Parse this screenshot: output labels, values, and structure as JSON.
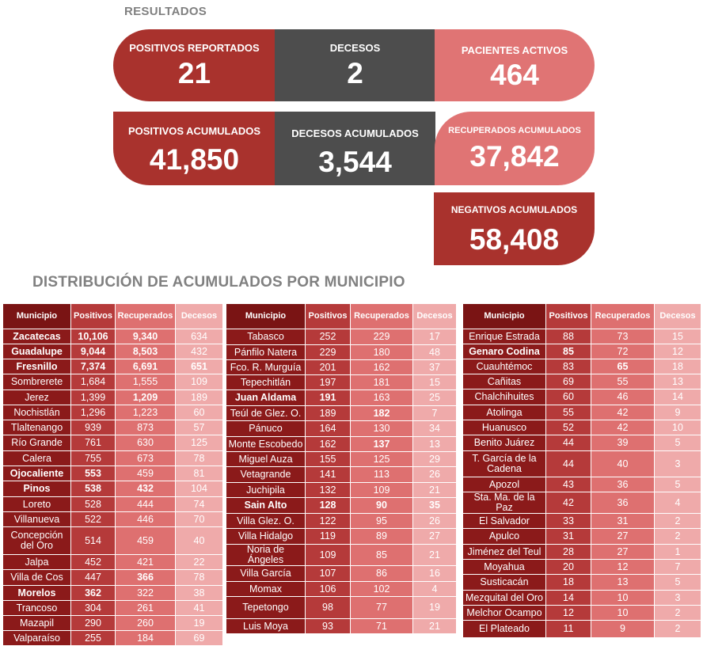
{
  "resultados_title": "RESULTADOS",
  "dist_title": "DISTRIBUCIÓN DE ACUMULADOS POR MUNICIPIO",
  "stats": {
    "positivos_reportados": {
      "label": "POSITIVOS REPORTADOS",
      "value": "21"
    },
    "decesos": {
      "label": "DECESOS",
      "value": "2"
    },
    "pacientes_activos": {
      "label": "PACIENTES ACTIVOS",
      "value": "464"
    },
    "positivos_acumulados": {
      "label": "POSITIVOS ACUMULADOS",
      "value": "41,850"
    },
    "decesos_acumulados": {
      "label": "DECESOS ACUMULADOS",
      "value": "3,544"
    },
    "recuperados_acumulados": {
      "label": "RECUPERADOS ACUMULADOS",
      "value": "37,842"
    },
    "negativos_acumulados": {
      "label": "NEGATIVOS ACUMULADOS",
      "value": "58,408"
    }
  },
  "table_headers": [
    "Municipio",
    "Positivos",
    "Recuperados",
    "Decesos"
  ],
  "tables": [
    [
      [
        "Zacatecas",
        "10,106",
        "9,340",
        "634"
      ],
      [
        "Guadalupe",
        "9,044",
        "8,503",
        "432"
      ],
      [
        "Fresnillo",
        "7,374",
        "6,691",
        "651"
      ],
      [
        "Sombrerete",
        "1,684",
        "1,555",
        "109"
      ],
      [
        "Jerez",
        "1,399",
        "1,209",
        "189"
      ],
      [
        "Nochistlán",
        "1,296",
        "1,223",
        "60"
      ],
      [
        "Tlaltenango",
        "939",
        "873",
        "57"
      ],
      [
        "Río Grande",
        "761",
        "630",
        "125"
      ],
      [
        "Calera",
        "755",
        "673",
        "78"
      ],
      [
        "Ojocaliente",
        "553",
        "459",
        "81"
      ],
      [
        "Pinos",
        "538",
        "432",
        "104"
      ],
      [
        "Loreto",
        "528",
        "444",
        "74"
      ],
      [
        "Villanueva",
        "522",
        "446",
        "70"
      ],
      [
        "Concepción del Oro",
        "514",
        "459",
        "40"
      ],
      [
        "Jalpa",
        "452",
        "421",
        "22"
      ],
      [
        "Villa de Cos",
        "447",
        "366",
        "78"
      ],
      [
        "Morelos",
        "362",
        "322",
        "38"
      ],
      [
        "Trancoso",
        "304",
        "261",
        "41"
      ],
      [
        "Mazapil",
        "290",
        "260",
        "19"
      ],
      [
        "Valparaíso",
        "255",
        "184",
        "69"
      ]
    ],
    [
      [
        "Tabasco",
        "252",
        "229",
        "17"
      ],
      [
        "Pánfilo Natera",
        "229",
        "180",
        "48"
      ],
      [
        "Fco. R. Murguía",
        "201",
        "162",
        "37"
      ],
      [
        "Tepechitlán",
        "197",
        "181",
        "15"
      ],
      [
        "Juan Aldama",
        "191",
        "163",
        "25"
      ],
      [
        "Teúl de Glez. O.",
        "189",
        "182",
        "7"
      ],
      [
        "Pánuco",
        "164",
        "130",
        "34"
      ],
      [
        "Monte Escobedo",
        "162",
        "137",
        "13"
      ],
      [
        "Miguel Auza",
        "155",
        "125",
        "29"
      ],
      [
        "Vetagrande",
        "141",
        "113",
        "26"
      ],
      [
        "Juchipila",
        "132",
        "109",
        "21"
      ],
      [
        "Sain Alto",
        "128",
        "90",
        "35"
      ],
      [
        "Villa Glez. O.",
        "122",
        "95",
        "26"
      ],
      [
        "Villa Hidalgo",
        "119",
        "89",
        "27"
      ],
      [
        "Noria de Ángeles",
        "109",
        "85",
        "21"
      ],
      [
        "Villa García",
        "107",
        "86",
        "16"
      ],
      [
        "Momax",
        "106",
        "102",
        "4"
      ],
      [
        "Tepetongo",
        "98",
        "77",
        "19"
      ],
      [
        "Luis Moya",
        "93",
        "71",
        "21"
      ]
    ],
    [
      [
        "Enrique Estrada",
        "88",
        "73",
        "15"
      ],
      [
        "Genaro Codina",
        "85",
        "72",
        "12"
      ],
      [
        "Cuauhtémoc",
        "83",
        "65",
        "18"
      ],
      [
        "Cañitas",
        "69",
        "55",
        "13"
      ],
      [
        "Chalchihuites",
        "60",
        "46",
        "14"
      ],
      [
        "Atolinga",
        "55",
        "42",
        "9"
      ],
      [
        "Huanusco",
        "52",
        "42",
        "10"
      ],
      [
        "Benito Juárez",
        "44",
        "39",
        "5"
      ],
      [
        "T. García de la Cadena",
        "44",
        "40",
        "3"
      ],
      [
        "Apozol",
        "43",
        "36",
        "5"
      ],
      [
        "Sta. Ma. de la Paz",
        "42",
        "36",
        "4"
      ],
      [
        "El Salvador",
        "33",
        "31",
        "2"
      ],
      [
        "Apulco",
        "31",
        "27",
        "2"
      ],
      [
        "Jiménez del Teul",
        "28",
        "27",
        "1"
      ],
      [
        "Moyahua",
        "20",
        "12",
        "7"
      ],
      [
        "Susticacán",
        "18",
        "13",
        "5"
      ],
      [
        "Mezquital del Oro",
        "14",
        "10",
        "3"
      ],
      [
        "Melchor Ocampo",
        "12",
        "10",
        "2"
      ],
      [
        "El Plateado",
        "11",
        "9",
        "2"
      ]
    ]
  ],
  "colors": {
    "dark_red": "#a9322d",
    "dark_gray": "#4d4d4d",
    "salmon": "#e07474",
    "col_municipio": "#8b1a1a",
    "col_positivos": "#b53a3a",
    "col_recuperados": "#de7070",
    "col_decesos": "#efaaaa"
  }
}
